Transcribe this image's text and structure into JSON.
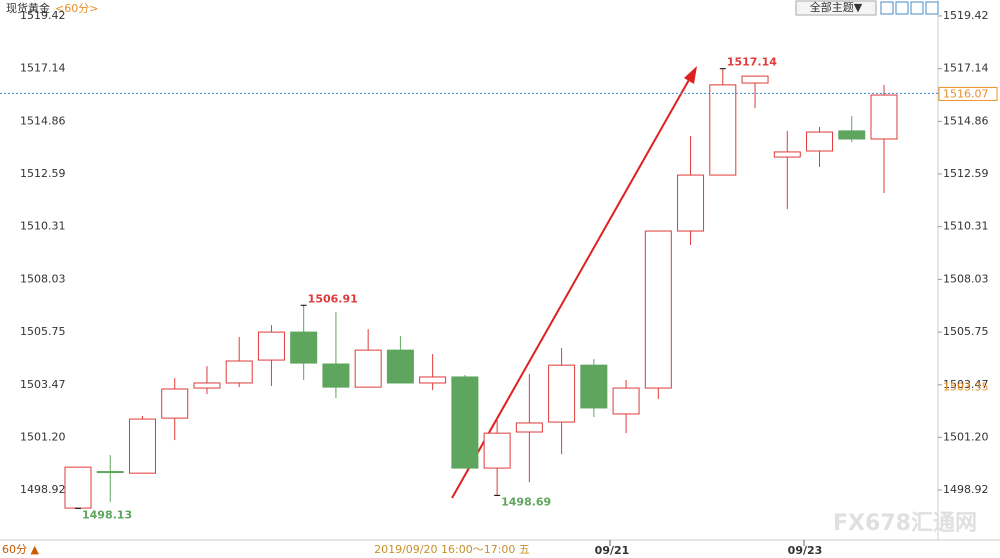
{
  "chart_data": {
    "type": "candlestick",
    "title": "现货黄金",
    "period": "<60分>",
    "theme_button": "全部主题▼",
    "period_footer": "60分 ▲",
    "crosshair_time": "2019/09/20 16:00～17:00 五",
    "date_labels": [
      "09/21",
      "09/23"
    ],
    "watermark": "FX678汇通网",
    "up_color": "#e03a3a",
    "down_color": "#5ea55e",
    "ylim": [
      1496.76,
      1520.11
    ],
    "yticks": [
      1498.92,
      {
        "value": 1501.2,
        "label": "1501.20"
      },
      1503.47,
      1505.75,
      1508.03,
      1510.31,
      1512.59,
      1514.86,
      1517.14,
      1519.42
    ],
    "open": [
      1498.14,
      1499.72,
      1499.65,
      1502.03,
      1503.33,
      1503.55,
      1504.54,
      1505.75,
      1504.37,
      1503.37,
      1504.97,
      1503.55,
      1503.81,
      1499.87,
      1501.43,
      1501.86,
      1504.32,
      1502.21,
      1503.33,
      1510.12,
      1512.54,
      1516.52,
      1513.32,
      1513.58,
      1514.45,
      1514.1
    ],
    "high": [
      1499.91,
      1500.43,
      1502.12,
      1503.76,
      1504.28,
      1505.54,
      1506.05,
      1506.91,
      1506.62,
      1505.88,
      1505.58,
      1504.8,
      1503.89,
      1501.95,
      1503.94,
      1505.06,
      1504.58,
      1503.68,
      1510.12,
      1514.23,
      1517.14,
      1516.82,
      1514.45,
      1514.62,
      1515.09,
      1516.44
    ],
    "low": [
      1498.13,
      1498.4,
      1499.65,
      1501.08,
      1503.07,
      1503.37,
      1503.42,
      1503.68,
      1502.9,
      1503.37,
      1503.55,
      1503.24,
      1499.87,
      1498.69,
      1499.26,
      1500.47,
      1502.08,
      1501.38,
      1502.86,
      1509.52,
      1512.54,
      1515.44,
      1511.07,
      1512.89,
      1513.97,
      1511.76
    ],
    "close": [
      1499.91,
      1499.7,
      1501.99,
      1503.29,
      1503.55,
      1504.5,
      1505.75,
      1504.41,
      1503.37,
      1504.97,
      1503.55,
      1503.81,
      1499.87,
      1501.38,
      1501.82,
      1504.32,
      1502.47,
      1503.33,
      1510.12,
      1512.54,
      1516.44,
      1516.82,
      1513.54,
      1514.4,
      1514.1,
      1516.0
    ],
    "extreme_labels": [
      1517.14,
      1506.91,
      1498.13,
      1498.69
    ],
    "current_price": 1516.07,
    "right_marker": 1503.35
  }
}
